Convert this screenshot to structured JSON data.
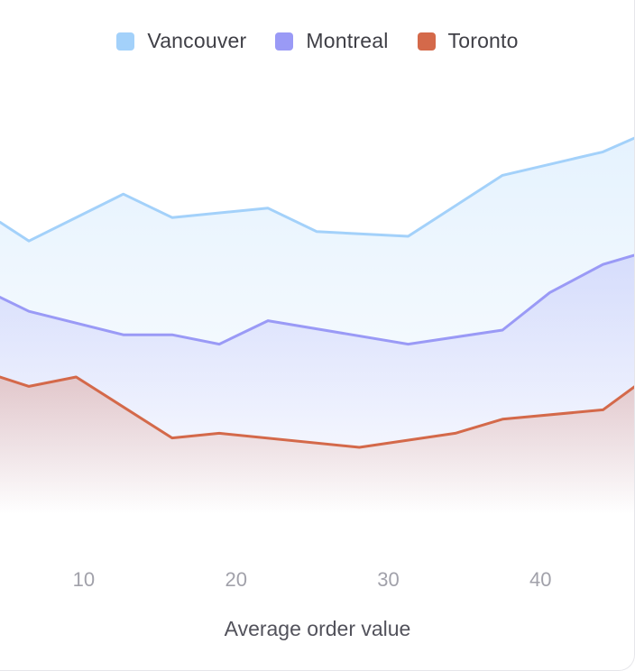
{
  "chart_data": {
    "type": "area",
    "title": "",
    "xlabel": "Average order value",
    "ylabel": "",
    "xlim": [
      4.5,
      46.2
    ],
    "ylim": [
      0,
      100
    ],
    "xticks": [
      10,
      20,
      30,
      40
    ],
    "legend_position": "top-center",
    "series": [
      {
        "name": "Vancouver",
        "color": "#a3d1fa",
        "x": [
          4.5,
          6.4,
          12.6,
          15.8,
          22.1,
          25.3,
          31.3,
          37.5,
          44.1,
          46.2
        ],
        "y": [
          68,
          64,
          74,
          69,
          71,
          66,
          65,
          78,
          83,
          86
        ]
      },
      {
        "name": "Montreal",
        "color": "#9a9af6",
        "x": [
          4.5,
          6.4,
          12.6,
          15.8,
          18.9,
          22.1,
          31.3,
          37.5,
          40.6,
          44.1,
          46.2
        ],
        "y": [
          52,
          49,
          44,
          44,
          42,
          47,
          42,
          45,
          53,
          59,
          61
        ]
      },
      {
        "name": "Toronto",
        "color": "#d4694a",
        "x": [
          4.5,
          6.4,
          9.5,
          15.8,
          18.9,
          28.1,
          34.4,
          37.5,
          44.1,
          46.2
        ],
        "y": [
          35,
          33,
          35,
          22,
          23,
          20,
          23,
          26,
          28,
          33
        ]
      }
    ]
  }
}
